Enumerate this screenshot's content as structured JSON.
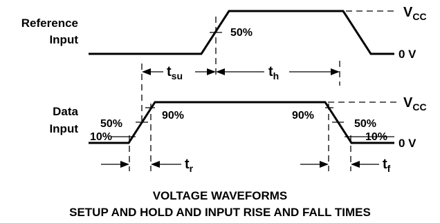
{
  "signals": {
    "reference_label_line1": "Reference",
    "reference_label_line2": "Input",
    "data_label_line1": "Data",
    "data_label_line2": "Input"
  },
  "levels": {
    "vcc_main": "V",
    "vcc_sub": "CC",
    "zero": "0 V"
  },
  "percentages": {
    "ref_50": "50%",
    "data_50_left": "50%",
    "data_10_left": "10%",
    "data_90_left": "90%",
    "data_90_right": "90%",
    "data_50_right": "50%",
    "data_10_right": "10%"
  },
  "timing": {
    "tsu_main": "t",
    "tsu_sub": "su",
    "th_main": "t",
    "th_sub": "h",
    "tr_main": "t",
    "tr_sub": "r",
    "tf_main": "t",
    "tf_sub": "f"
  },
  "caption": {
    "line1": "VOLTAGE WAVEFORMS",
    "line2": "SETUP AND HOLD AND INPUT RISE AND FALL TIMES"
  }
}
